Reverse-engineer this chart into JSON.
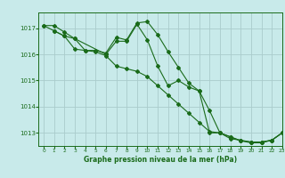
{
  "background_color": "#c8eaea",
  "grid_color": "#aacccc",
  "line_color": "#1a6b1a",
  "marker_color": "#1a6b1a",
  "title": "Graphe pression niveau de la mer (hPa)",
  "xlim": [
    -0.5,
    23
  ],
  "ylim": [
    1012.5,
    1017.6
  ],
  "yticks": [
    1013,
    1014,
    1015,
    1016,
    1017
  ],
  "xticks": [
    0,
    1,
    2,
    3,
    4,
    5,
    6,
    7,
    8,
    9,
    10,
    11,
    12,
    13,
    14,
    15,
    16,
    17,
    18,
    19,
    20,
    21,
    22,
    23
  ],
  "series1_x": [
    0,
    1,
    2,
    3,
    4,
    5,
    6,
    7,
    8,
    9,
    10,
    11,
    12,
    13,
    14,
    15,
    16,
    17,
    18,
    19,
    20,
    21,
    22,
    23
  ],
  "series1_y": [
    1017.1,
    1017.1,
    1016.85,
    1016.6,
    1016.15,
    1016.15,
    1016.05,
    1016.65,
    1016.55,
    1017.2,
    1017.25,
    1016.75,
    1016.1,
    1015.5,
    1014.9,
    1014.6,
    1013.85,
    1013.0,
    1012.85,
    1012.7,
    1012.65,
    1012.65,
    1012.72,
    1013.0
  ],
  "series2_x": [
    0,
    1,
    2,
    3,
    4,
    5,
    6,
    7,
    8,
    9,
    10,
    11,
    12,
    13,
    14,
    15,
    16,
    17,
    18,
    19,
    20,
    21,
    22,
    23
  ],
  "series2_y": [
    1017.1,
    1016.9,
    1016.7,
    1016.2,
    1016.15,
    1016.1,
    1015.95,
    1015.55,
    1015.45,
    1015.35,
    1015.15,
    1014.8,
    1014.45,
    1014.1,
    1013.75,
    1013.4,
    1013.05,
    1013.0,
    1012.78,
    1012.72,
    1012.65,
    1012.65,
    1012.72,
    1013.0
  ],
  "series3_x": [
    1,
    2,
    3,
    6,
    7,
    8,
    9,
    10,
    11,
    12,
    13,
    14,
    15,
    16,
    17,
    18,
    19,
    20,
    21,
    22,
    23
  ],
  "series3_y": [
    1016.9,
    1016.7,
    1016.6,
    1016.0,
    1016.5,
    1016.5,
    1017.15,
    1016.55,
    1015.55,
    1014.8,
    1015.0,
    1014.75,
    1014.6,
    1013.0,
    1013.0,
    1012.85,
    1012.7,
    1012.62,
    1012.62,
    1012.72,
    1013.0
  ]
}
